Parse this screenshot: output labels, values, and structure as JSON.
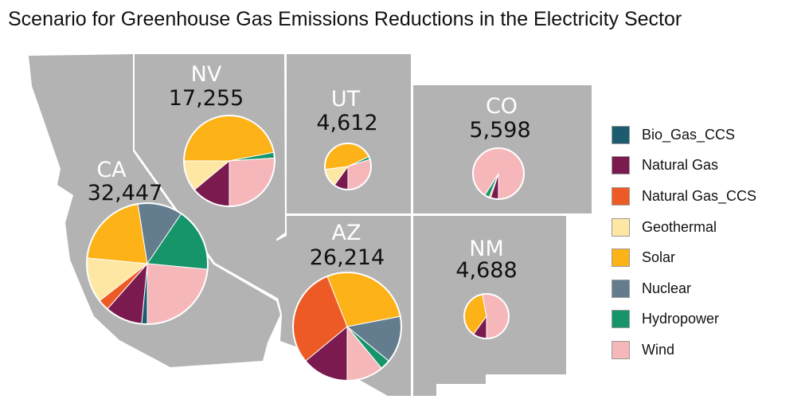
{
  "title": "Scenario for Greenhouse Gas Emissions Reductions in the Electricity Sector",
  "legend": [
    {
      "label": "Bio_Gas_CCS",
      "color": "#1c5b70"
    },
    {
      "label": "Natural Gas",
      "color": "#7b1a4f"
    },
    {
      "label": "Natural Gas_CCS",
      "color": "#ee5a26"
    },
    {
      "label": "Geothermal",
      "color": "#fde7a3"
    },
    {
      "label": "Solar",
      "color": "#fdb218"
    },
    {
      "label": "Nuclear",
      "color": "#637d8e"
    },
    {
      "label": "Hydropower",
      "color": "#17956a"
    },
    {
      "label": "Wind",
      "color": "#f6b7bb"
    }
  ],
  "states": [
    {
      "abbr": "CA",
      "value": "32,447",
      "mix": [
        0.015,
        0.1,
        0.03,
        0.12,
        0.21,
        0.12,
        0.17,
        0.235
      ]
    },
    {
      "abbr": "NV",
      "value": "17,255",
      "mix": [
        0.0,
        0.14,
        0.0,
        0.11,
        0.47,
        0.0,
        0.02,
        0.26
      ]
    },
    {
      "abbr": "UT",
      "value": "4,612",
      "mix": [
        0.0,
        0.1,
        0.0,
        0.13,
        0.45,
        0.0,
        0.02,
        0.3
      ]
    },
    {
      "abbr": "CO",
      "value": "5,598",
      "mix": [
        0.0,
        0.05,
        0.0,
        0.0,
        0.01,
        0.0,
        0.03,
        0.91
      ]
    },
    {
      "abbr": "AZ",
      "value": "26,214",
      "mix": [
        0.0,
        0.14,
        0.3,
        0.0,
        0.28,
        0.14,
        0.03,
        0.11
      ]
    },
    {
      "abbr": "NM",
      "value": "4,688",
      "mix": [
        0.0,
        0.1,
        0.0,
        0.0,
        0.37,
        0.0,
        0.0,
        0.53
      ]
    }
  ]
}
